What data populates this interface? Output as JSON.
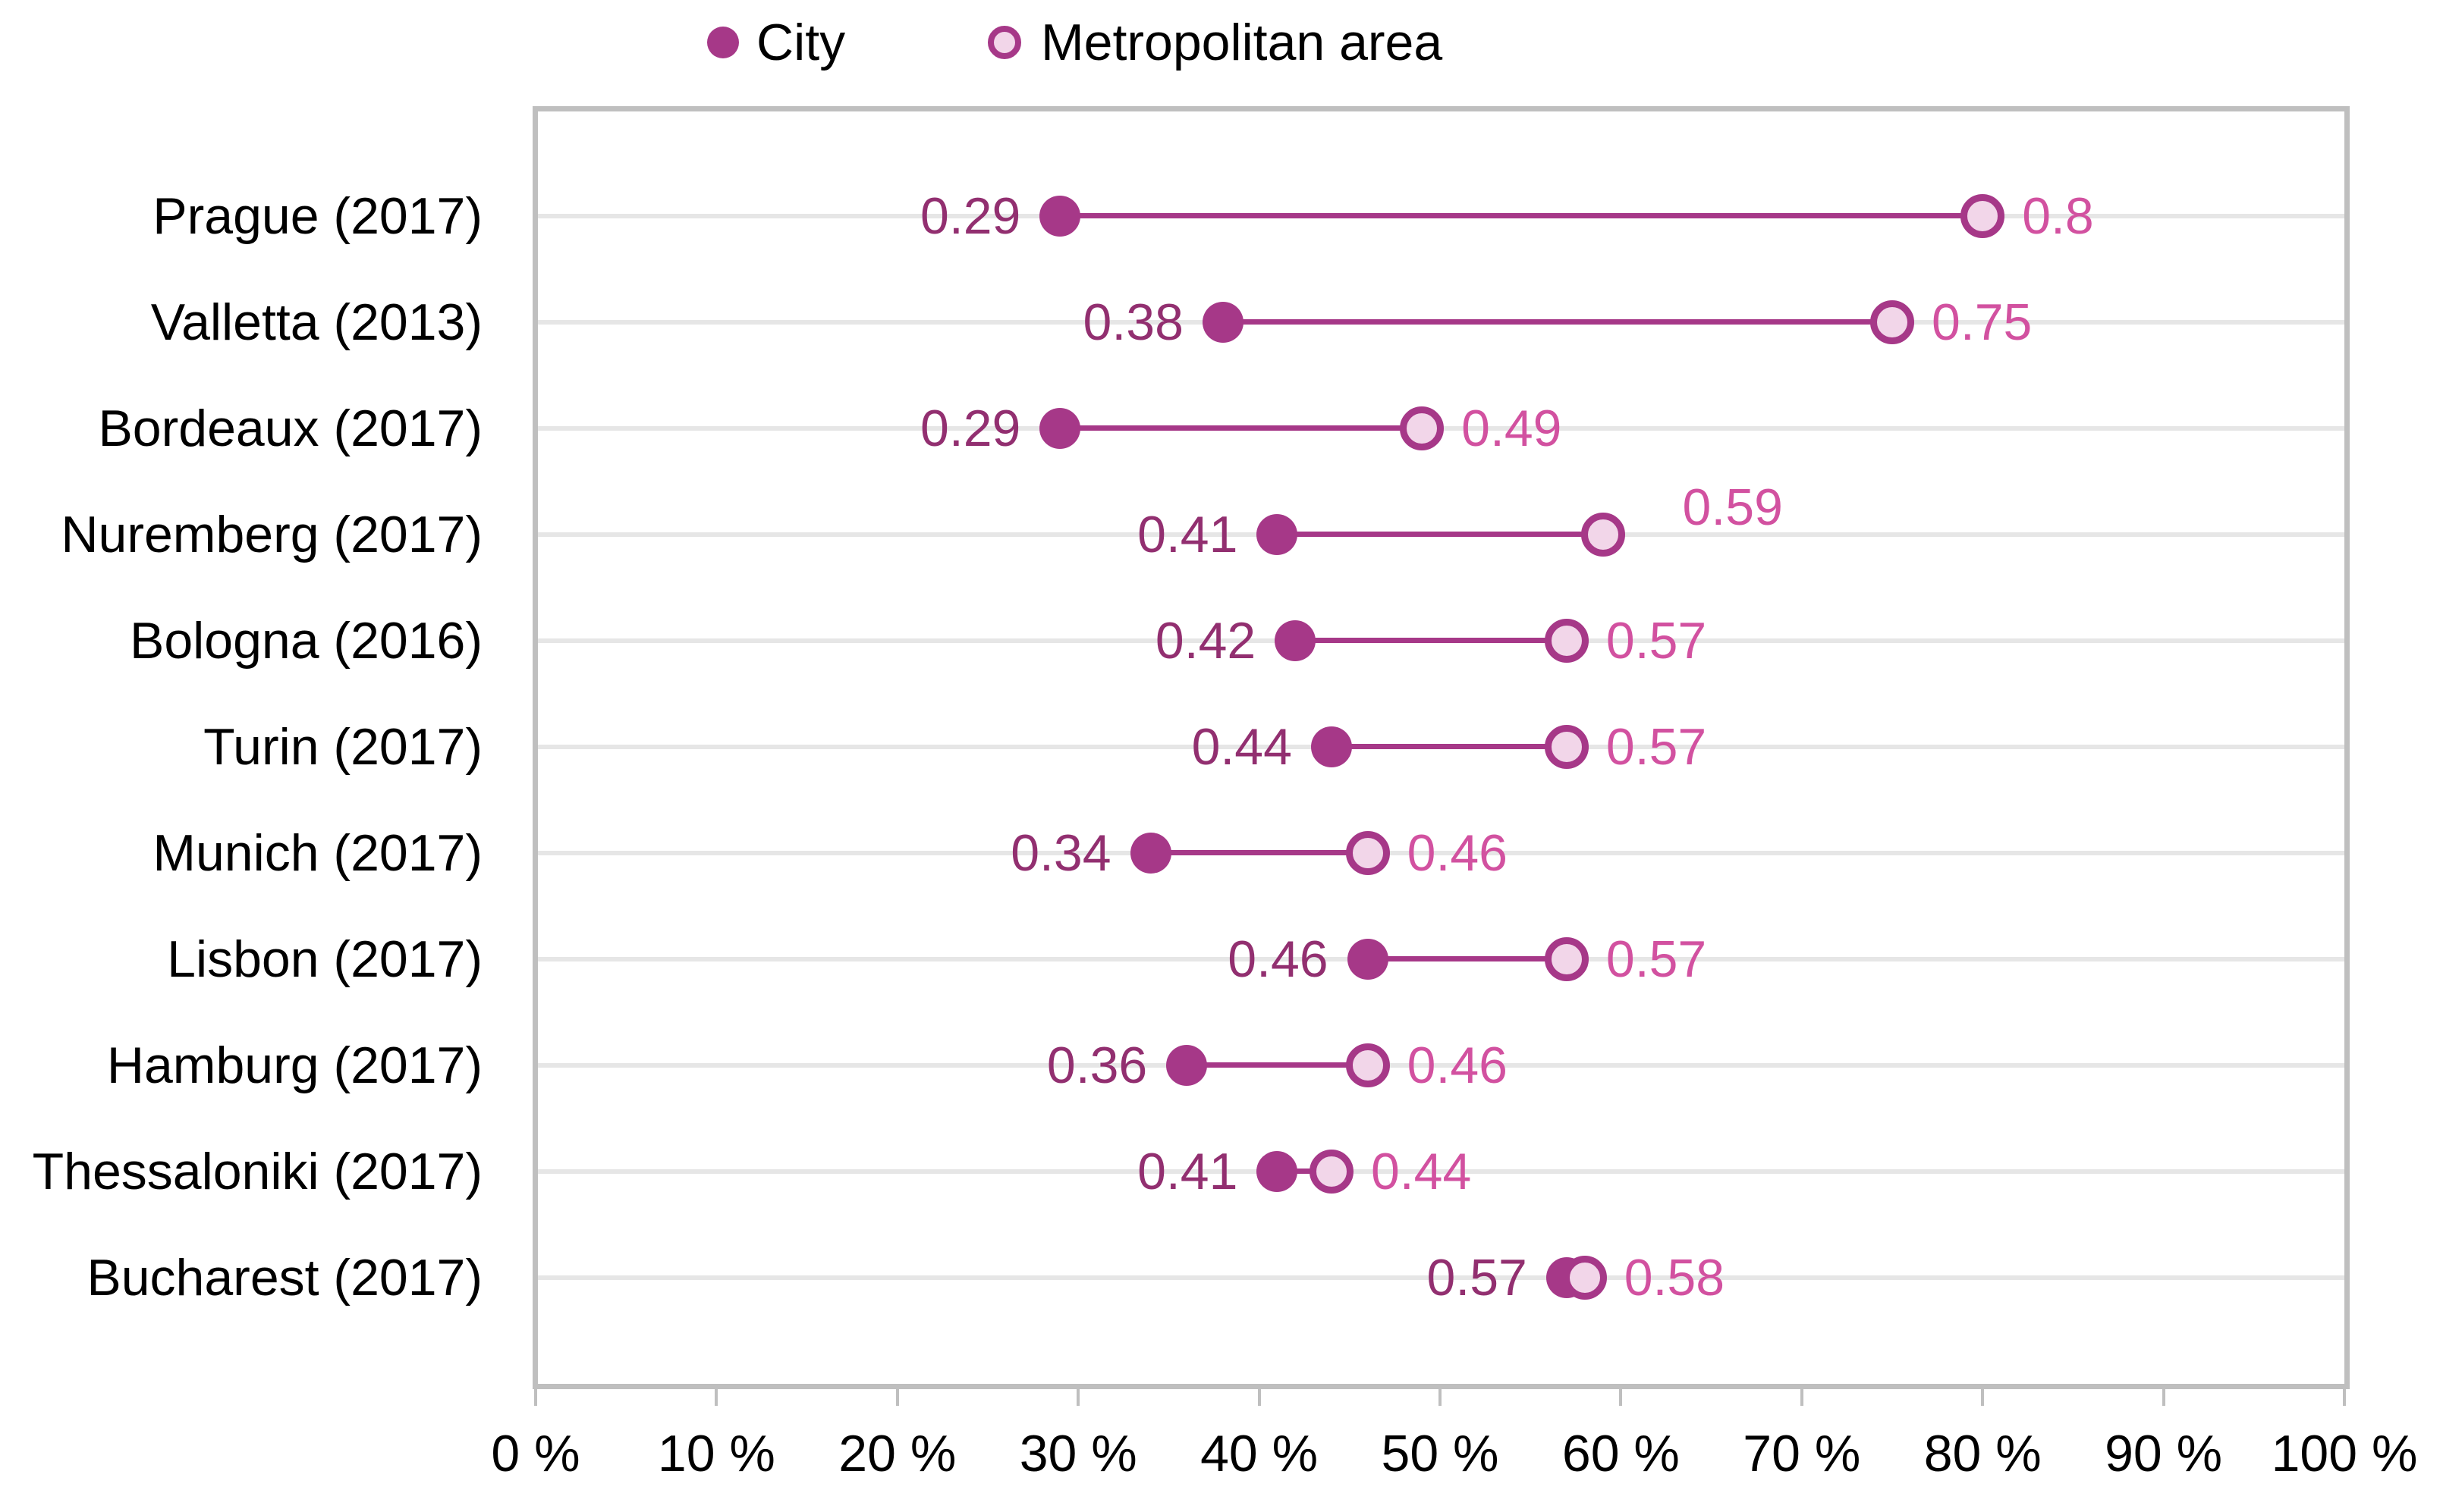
{
  "legend": {
    "items": [
      {
        "label": "City",
        "series": "city"
      },
      {
        "label": "Metropolitan area",
        "series": "metro"
      }
    ]
  },
  "chart_data": {
    "type": "dumbbell",
    "orientation": "horizontal",
    "title": "",
    "legend_position": "top",
    "grid": "one horizontal gridline per category row",
    "series_names": [
      "City",
      "Metropolitan area"
    ],
    "x_axis": {
      "min": 0,
      "max": 1,
      "unit": "%",
      "tick_labels": [
        "0 %",
        "10 %",
        "20 %",
        "30 %",
        "40 %",
        "50 %",
        "60 %",
        "70 %",
        "80 %",
        "90 %",
        "100 %"
      ]
    },
    "rows": [
      {
        "category": "Prague (2017)",
        "city": 0.29,
        "city_label": "0.29",
        "metro": 0.8,
        "metro_label": "0.8"
      },
      {
        "category": "Valletta (2013)",
        "city": 0.38,
        "city_label": "0.38",
        "metro": 0.75,
        "metro_label": "0.75"
      },
      {
        "category": "Bordeaux (2017)",
        "city": 0.29,
        "city_label": "0.29",
        "metro": 0.49,
        "metro_label": "0.49"
      },
      {
        "category": "Nuremberg (2017)",
        "city": 0.41,
        "city_label": "0.41",
        "metro": 0.59,
        "metro_label": "0.59"
      },
      {
        "category": "Bologna (2016)",
        "city": 0.42,
        "city_label": "0.42",
        "metro": 0.57,
        "metro_label": "0.57"
      },
      {
        "category": "Turin (2017)",
        "city": 0.44,
        "city_label": "0.44",
        "metro": 0.57,
        "metro_label": "0.57"
      },
      {
        "category": "Munich (2017)",
        "city": 0.34,
        "city_label": "0.34",
        "metro": 0.46,
        "metro_label": "0.46"
      },
      {
        "category": "Lisbon (2017)",
        "city": 0.46,
        "city_label": "0.46",
        "metro": 0.57,
        "metro_label": "0.57"
      },
      {
        "category": "Hamburg (2017)",
        "city": 0.36,
        "city_label": "0.36",
        "metro": 0.46,
        "metro_label": "0.46"
      },
      {
        "category": "Thessaloniki (2017)",
        "city": 0.41,
        "city_label": "0.41",
        "metro": 0.44,
        "metro_label": "0.44"
      },
      {
        "category": "Bucharest (2017)",
        "city": 0.57,
        "city_label": "0.57",
        "metro": 0.58,
        "metro_label": "0.58"
      }
    ]
  },
  "colors": {
    "city": "#A63888",
    "metro_fill": "#F2D6E9",
    "metro_border": "#A63888",
    "connector": "#A63888",
    "city_value_text": "#922F70",
    "metro_value_text": "#D251A0",
    "gridline": "#E6E6E6",
    "axis": "#BFBFBF",
    "text": "#000000"
  }
}
